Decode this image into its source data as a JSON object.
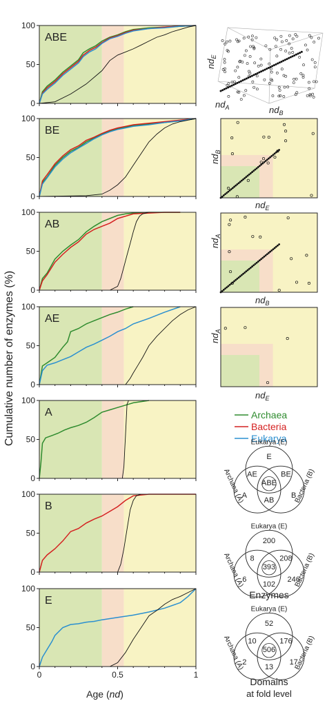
{
  "figure": {
    "ylabel": "Cumulative number of enzymes (%)",
    "xlabel_main": "Age (",
    "xlabel_italic": "nd",
    "xlabel_close": ")",
    "colors": {
      "archaea": "#2e8b2e",
      "bacteria": "#d42020",
      "eukarya": "#2a8fd0",
      "black": "#111111",
      "zone_green": "#d9e6b4",
      "zone_peach": "#f7dec9",
      "zone_yellow": "#f8f3c4"
    }
  },
  "zones": [
    0.4,
    0.54
  ],
  "chart_data": [
    {
      "type": "line",
      "panel": "ABE",
      "xlim": [
        0,
        1
      ],
      "ylim": [
        0,
        100
      ],
      "x_ticks": [
        "0",
        "0.5",
        "1"
      ],
      "y_ticks": [
        "0",
        "50",
        "100"
      ],
      "show_x_tick_labels": false,
      "series": [
        {
          "color": "archaea",
          "x": [
            0,
            0.02,
            0.05,
            0.1,
            0.15,
            0.2,
            0.25,
            0.28,
            0.32,
            0.36,
            0.4,
            0.45,
            0.5,
            0.55,
            0.6,
            0.7,
            0.8,
            0.9,
            1.0
          ],
          "y": [
            0,
            15,
            22,
            30,
            40,
            48,
            56,
            65,
            70,
            74,
            80,
            85,
            88,
            92,
            95,
            97,
            98,
            99,
            100
          ]
        },
        {
          "color": "bacteria",
          "x": [
            0,
            0.02,
            0.05,
            0.1,
            0.15,
            0.2,
            0.25,
            0.28,
            0.32,
            0.36,
            0.4,
            0.45,
            0.5,
            0.55,
            0.6,
            0.7,
            0.8,
            0.9,
            1.0
          ],
          "y": [
            0,
            13,
            20,
            28,
            38,
            46,
            54,
            62,
            68,
            72,
            78,
            84,
            87,
            91,
            94,
            96,
            98,
            99,
            100
          ]
        },
        {
          "color": "eukarya",
          "x": [
            0,
            0.02,
            0.05,
            0.1,
            0.15,
            0.2,
            0.25,
            0.28,
            0.32,
            0.36,
            0.4,
            0.45,
            0.5,
            0.55,
            0.6,
            0.7,
            0.8,
            0.9,
            1.0
          ],
          "y": [
            0,
            12,
            18,
            26,
            36,
            44,
            52,
            60,
            66,
            70,
            77,
            83,
            86,
            90,
            93,
            96,
            97,
            99,
            100
          ]
        },
        {
          "color": "black",
          "x": [
            0,
            0.1,
            0.2,
            0.3,
            0.4,
            0.45,
            0.5,
            0.55,
            0.6,
            0.65,
            0.7,
            0.75,
            0.8,
            0.85,
            0.9,
            0.95,
            1.0
          ],
          "y": [
            0,
            2,
            12,
            25,
            42,
            55,
            62,
            66,
            70,
            75,
            80,
            85,
            88,
            92,
            95,
            98,
            100
          ]
        }
      ]
    },
    {
      "type": "line",
      "panel": "BE",
      "xlim": [
        0,
        1
      ],
      "ylim": [
        0,
        100
      ],
      "x_ticks": [
        "0",
        "0.5",
        "1"
      ],
      "y_ticks": [
        "0",
        "50",
        "100"
      ],
      "show_x_tick_labels": false,
      "series": [
        {
          "color": "archaea",
          "x": [
            0,
            0.02,
            0.05,
            0.1,
            0.15,
            0.2,
            0.25,
            0.3,
            0.35,
            0.4,
            0.45,
            0.5,
            0.55,
            0.6,
            0.7,
            0.8,
            0.9,
            1.0
          ],
          "y": [
            0,
            18,
            25,
            40,
            50,
            58,
            63,
            70,
            75,
            80,
            84,
            87,
            89,
            91,
            93,
            95,
            97,
            100
          ]
        },
        {
          "color": "bacteria",
          "x": [
            0,
            0.02,
            0.05,
            0.1,
            0.15,
            0.2,
            0.25,
            0.3,
            0.35,
            0.4,
            0.45,
            0.5,
            0.55,
            0.6,
            0.7,
            0.8,
            0.9,
            1.0
          ],
          "y": [
            0,
            20,
            28,
            42,
            52,
            60,
            65,
            72,
            76,
            81,
            85,
            88,
            90,
            92,
            94,
            96,
            98,
            100
          ]
        },
        {
          "color": "eukarya",
          "x": [
            0,
            0.02,
            0.05,
            0.1,
            0.15,
            0.2,
            0.25,
            0.3,
            0.35,
            0.4,
            0.45,
            0.5,
            0.55,
            0.6,
            0.7,
            0.8,
            0.9,
            1.0
          ],
          "y": [
            0,
            16,
            24,
            38,
            48,
            56,
            62,
            68,
            74,
            79,
            83,
            86,
            88,
            90,
            92,
            95,
            97,
            100
          ]
        },
        {
          "color": "black",
          "x": [
            0,
            0.3,
            0.4,
            0.45,
            0.5,
            0.55,
            0.6,
            0.65,
            0.7,
            0.75,
            0.8,
            0.85,
            0.9,
            0.95,
            1.0
          ],
          "y": [
            0,
            1,
            3,
            8,
            15,
            25,
            40,
            55,
            70,
            80,
            88,
            93,
            96,
            98,
            100
          ]
        }
      ]
    },
    {
      "type": "line",
      "panel": "AB",
      "xlim": [
        0,
        1
      ],
      "ylim": [
        0,
        100
      ],
      "x_ticks": [
        "0",
        "0.5",
        "1"
      ],
      "y_ticks": [
        "0",
        "50",
        "100"
      ],
      "show_x_tick_labels": false,
      "series": [
        {
          "color": "archaea",
          "x": [
            0,
            0.02,
            0.05,
            0.1,
            0.15,
            0.2,
            0.25,
            0.3,
            0.35,
            0.4,
            0.45,
            0.5,
            0.55,
            0.6,
            0.7,
            0.8,
            0.9
          ],
          "y": [
            0,
            15,
            22,
            40,
            50,
            58,
            65,
            75,
            82,
            88,
            92,
            96,
            98,
            99,
            100,
            100,
            100
          ]
        },
        {
          "color": "bacteria",
          "x": [
            0,
            0.02,
            0.05,
            0.1,
            0.15,
            0.2,
            0.25,
            0.3,
            0.35,
            0.4,
            0.45,
            0.5,
            0.55,
            0.6,
            0.7,
            0.8,
            0.9
          ],
          "y": [
            0,
            12,
            20,
            36,
            46,
            55,
            62,
            72,
            78,
            82,
            86,
            92,
            95,
            98,
            99,
            100,
            100
          ]
        },
        {
          "color": "black",
          "x": [
            0,
            0.45,
            0.5,
            0.52,
            0.54,
            0.56,
            0.58,
            0.6,
            0.62,
            0.64,
            0.66,
            0.68,
            0.7
          ],
          "y": [
            0,
            0,
            5,
            15,
            30,
            45,
            60,
            75,
            88,
            95,
            98,
            99,
            100
          ]
        }
      ]
    },
    {
      "type": "line",
      "panel": "AE",
      "xlim": [
        0,
        1
      ],
      "ylim": [
        0,
        100
      ],
      "x_ticks": [
        "0",
        "0.5",
        "1"
      ],
      "y_ticks": [
        "0",
        "50",
        "100"
      ],
      "show_x_tick_labels": false,
      "series": [
        {
          "color": "archaea",
          "x": [
            0,
            0.02,
            0.05,
            0.1,
            0.15,
            0.18,
            0.2,
            0.25,
            0.3,
            0.35,
            0.4,
            0.45,
            0.5,
            0.55,
            0.6
          ],
          "y": [
            0,
            24,
            28,
            35,
            48,
            55,
            68,
            72,
            78,
            82,
            86,
            90,
            93,
            97,
            100
          ]
        },
        {
          "color": "eukarya",
          "x": [
            0,
            0.02,
            0.05,
            0.1,
            0.15,
            0.2,
            0.25,
            0.3,
            0.35,
            0.4,
            0.45,
            0.5,
            0.55,
            0.6,
            0.7,
            0.8,
            0.9
          ],
          "y": [
            0,
            18,
            25,
            28,
            32,
            36,
            42,
            48,
            52,
            57,
            62,
            68,
            72,
            78,
            85,
            93,
            100
          ]
        },
        {
          "color": "black",
          "x": [
            0,
            0.55,
            0.58,
            0.6,
            0.63,
            0.66,
            0.7,
            0.75,
            0.8,
            0.85,
            0.9,
            0.95,
            1.0
          ],
          "y": [
            0,
            0,
            8,
            15,
            25,
            35,
            50,
            62,
            72,
            82,
            90,
            96,
            100
          ]
        }
      ]
    },
    {
      "type": "line",
      "panel": "A",
      "xlim": [
        0,
        1
      ],
      "ylim": [
        0,
        100
      ],
      "x_ticks": [
        "0",
        "0.5",
        "1"
      ],
      "y_ticks": [
        "0",
        "50",
        "100"
      ],
      "show_x_tick_labels": false,
      "series": [
        {
          "color": "archaea",
          "x": [
            0,
            0.01,
            0.02,
            0.04,
            0.08,
            0.12,
            0.16,
            0.2,
            0.25,
            0.3,
            0.35,
            0.4,
            0.45,
            0.5,
            0.55,
            0.6,
            0.7
          ],
          "y": [
            0,
            20,
            45,
            52,
            55,
            58,
            62,
            65,
            68,
            72,
            78,
            85,
            88,
            91,
            94,
            97,
            100
          ]
        },
        {
          "color": "black",
          "x": [
            0,
            0.53,
            0.54,
            0.545,
            0.55,
            0.555,
            0.56,
            0.57
          ],
          "y": [
            0,
            0,
            15,
            35,
            55,
            75,
            95,
            100
          ]
        }
      ]
    },
    {
      "type": "line",
      "panel": "B",
      "xlim": [
        0,
        1
      ],
      "ylim": [
        0,
        100
      ],
      "x_ticks": [
        "0",
        "0.5",
        "1"
      ],
      "y_ticks": [
        "0",
        "50",
        "100"
      ],
      "show_x_tick_labels": false,
      "series": [
        {
          "color": "bacteria",
          "x": [
            0,
            0.02,
            0.05,
            0.1,
            0.15,
            0.2,
            0.25,
            0.3,
            0.35,
            0.4,
            0.45,
            0.5,
            0.55,
            0.6,
            0.65,
            0.7,
            0.8,
            0.9,
            1.0
          ],
          "y": [
            0,
            15,
            22,
            30,
            40,
            52,
            56,
            63,
            68,
            72,
            78,
            84,
            92,
            98,
            99,
            100,
            100,
            100,
            100
          ]
        },
        {
          "color": "black",
          "x": [
            0,
            0.5,
            0.52,
            0.54,
            0.56,
            0.58,
            0.6,
            0.62,
            0.65
          ],
          "y": [
            0,
            0,
            10,
            30,
            55,
            80,
            92,
            98,
            100
          ]
        }
      ]
    },
    {
      "type": "line",
      "panel": "E",
      "xlim": [
        0,
        1
      ],
      "ylim": [
        0,
        100
      ],
      "x_ticks": [
        "0",
        "0.5",
        "1"
      ],
      "y_ticks": [
        "0",
        "50",
        "100"
      ],
      "show_x_tick_labels": true,
      "series": [
        {
          "color": "eukarya",
          "x": [
            0,
            0.02,
            0.05,
            0.08,
            0.1,
            0.15,
            0.2,
            0.25,
            0.3,
            0.35,
            0.4,
            0.5,
            0.6,
            0.7,
            0.8,
            0.9,
            0.95,
            1.0
          ],
          "y": [
            0,
            12,
            22,
            32,
            40,
            50,
            54,
            55,
            57,
            58,
            60,
            63,
            66,
            70,
            75,
            82,
            90,
            100
          ]
        },
        {
          "color": "black",
          "x": [
            0,
            0.45,
            0.5,
            0.55,
            0.6,
            0.65,
            0.7,
            0.75,
            0.8,
            0.85,
            0.9,
            0.95,
            1.0
          ],
          "y": [
            0,
            0,
            5,
            18,
            35,
            50,
            65,
            72,
            80,
            86,
            90,
            95,
            100
          ]
        }
      ]
    }
  ],
  "panels": [
    "ABE",
    "BE",
    "AB",
    "AE",
    "A",
    "B",
    "E"
  ],
  "scatter": {
    "p1": {
      "xlabel": "nd",
      "xsub": "A",
      "ylabel": "nd",
      "ysub": "E",
      "zlabel": "nd",
      "zsub": "B"
    },
    "p2": {
      "xlabel": "nd",
      "xsub": "E",
      "ylabel": "nd",
      "ysub": "B"
    },
    "p3": {
      "xlabel": "nd",
      "xsub": "B",
      "ylabel": "nd",
      "ysub": "A"
    },
    "p4": {
      "xlabel": "nd",
      "xsub": "E",
      "ylabel": "nd",
      "ysub": "A"
    }
  },
  "legend": {
    "archaea": "Archaea",
    "bacteria": "Bacteria",
    "eukarya": "Eukarya"
  },
  "venn_key": {
    "top": "Eukarya (E)",
    "left": "Archaea (A)",
    "right": "Bacteria (B)",
    "E": "E",
    "A": "A",
    "B": "B",
    "AE": "AE",
    "BE": "BE",
    "AB": "AB",
    "ABE": "ABE"
  },
  "venn_enzymes": {
    "top": "Eukarya (E)",
    "left": "Archaea (A)",
    "right": "Bacteria (B)",
    "E": "200",
    "A": "6",
    "B": "246",
    "AE": "8",
    "BE": "208",
    "AB": "102",
    "ABE": "393",
    "caption": "Enzymes"
  },
  "venn_domains": {
    "top": "Eukarya (E)",
    "left": "Archaea (A)",
    "right": "Bacteria (B)",
    "E": "52",
    "A": "2",
    "B": "17",
    "AE": "10",
    "BE": "176",
    "AB": "13",
    "ABE": "506",
    "caption1": "Domains",
    "caption2": "at fold level"
  }
}
